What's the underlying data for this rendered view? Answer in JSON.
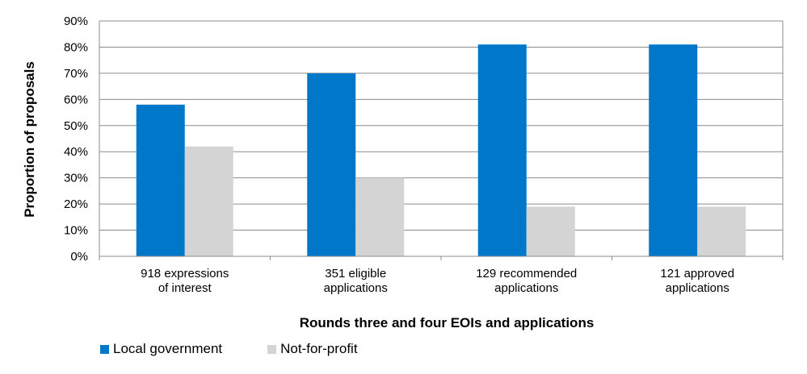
{
  "chart_data": {
    "type": "bar",
    "categories": [
      [
        "918 expressions",
        "of interest"
      ],
      [
        "351 eligible",
        "applications"
      ],
      [
        "129 recommended",
        "applications"
      ],
      [
        "121 approved",
        "applications"
      ]
    ],
    "series": [
      {
        "name": "Local government",
        "color": "#0077C8",
        "values": [
          58,
          70,
          81,
          81
        ]
      },
      {
        "name": "Not-for-profit",
        "color": "#D4D4D4",
        "values": [
          42,
          30,
          19,
          19
        ]
      }
    ],
    "title": "",
    "xlabel": "Rounds three and four EOIs and applications",
    "ylabel": "Proportion of proposals",
    "ylim": [
      0,
      90
    ],
    "yticks": [
      0,
      10,
      20,
      30,
      40,
      50,
      60,
      70,
      80,
      90
    ],
    "ytick_suffix": "%",
    "grid": true,
    "legend_position": "bottom-left"
  }
}
